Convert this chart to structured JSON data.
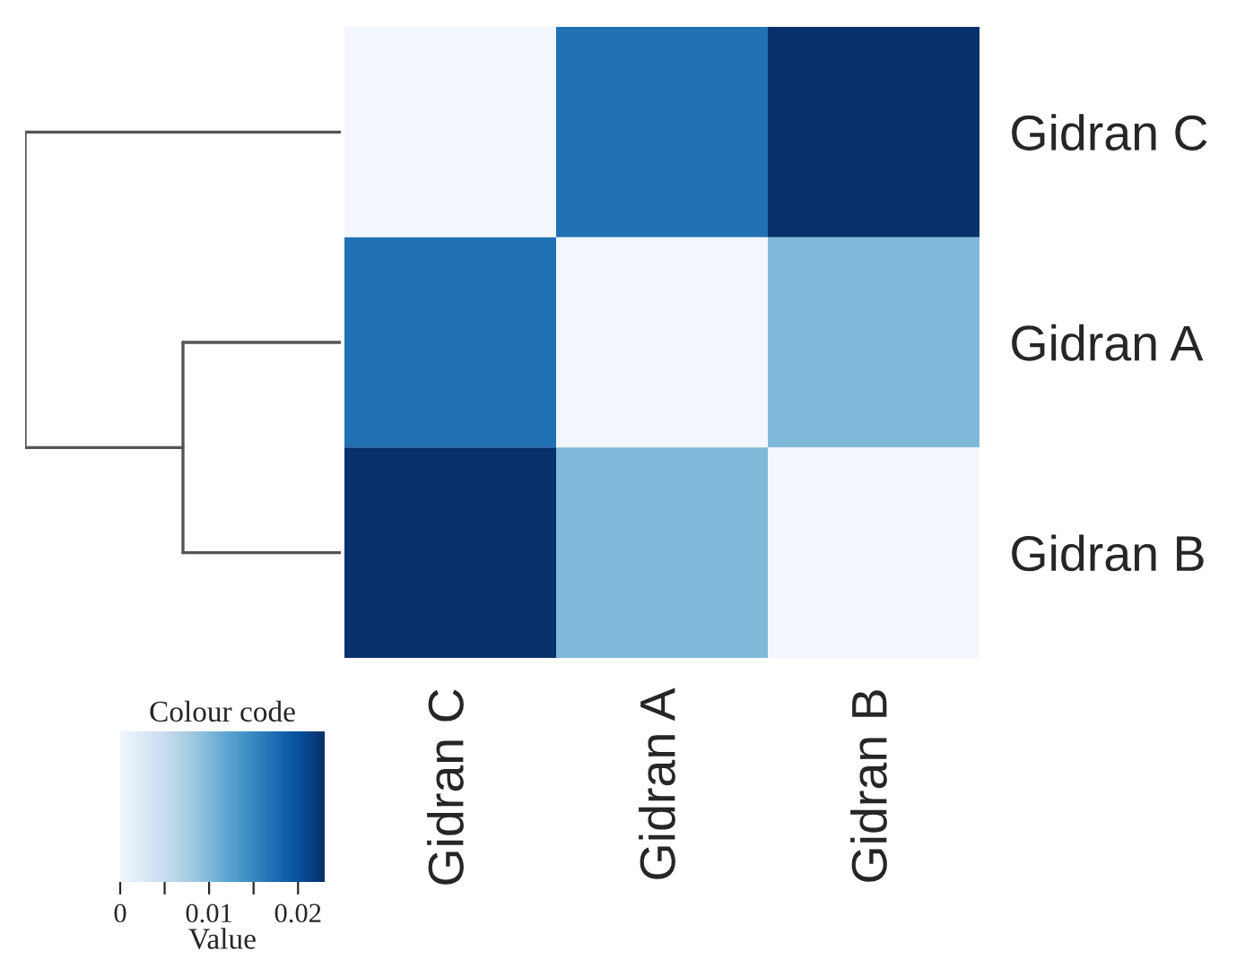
{
  "chart_data": {
    "type": "heatmap",
    "categories": [
      "Gidran C",
      "Gidran A",
      "Gidran B"
    ],
    "y_categories": [
      "Gidran C",
      "Gidran A",
      "Gidran B"
    ],
    "cells": [
      [
        0,
        0.017,
        0.023
      ],
      [
        0.017,
        0,
        0.01
      ],
      [
        0.023,
        0.01,
        0
      ]
    ],
    "clabel": "Value",
    "legend_title": "Colour code",
    "clim": [
      0,
      0.023
    ],
    "cticks": [
      0,
      {
        "value": 0.005,
        "label": null
      },
      {
        "value": 0.01,
        "label": "0.01"
      },
      {
        "value": 0.015,
        "label": null
      },
      {
        "value": 0.02,
        "label": "0.02"
      }
    ]
  }
}
